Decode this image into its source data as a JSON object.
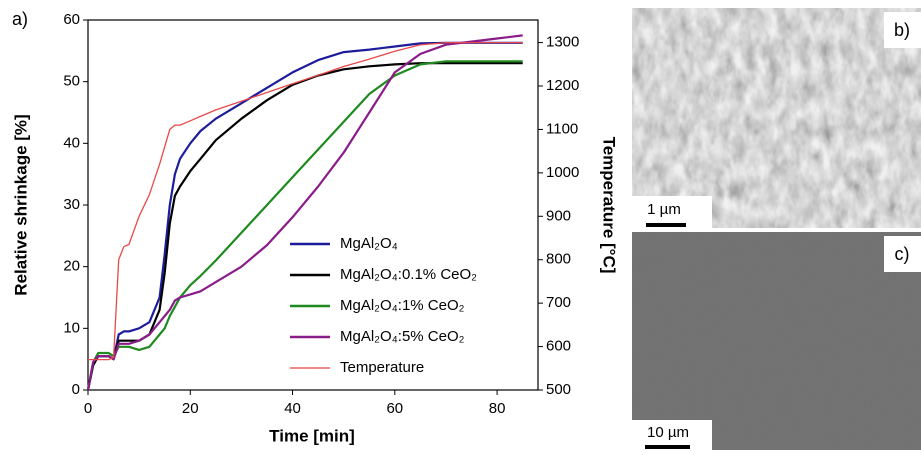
{
  "chart_data": {
    "type": "line",
    "panel_label": "a)",
    "x_label": "Time [min]",
    "y_label": "Relative shrinkage [%]",
    "y2_label": "Temperature [°C]",
    "xlim": [
      0,
      88
    ],
    "ylim": [
      0,
      60
    ],
    "y2lim": [
      500,
      1352
    ],
    "xticks": [
      0,
      20,
      40,
      60,
      80
    ],
    "yticks": [
      0,
      10,
      20,
      30,
      40,
      50,
      60
    ],
    "y2ticks": [
      500,
      600,
      700,
      800,
      900,
      1000,
      1100,
      1200,
      1300
    ],
    "x": [
      0,
      1,
      2,
      3,
      4,
      5,
      6,
      7,
      8,
      10,
      12,
      14,
      15,
      16,
      17,
      18,
      20,
      22,
      25,
      30,
      35,
      40,
      45,
      50,
      55,
      60,
      65,
      70,
      75,
      80,
      85
    ],
    "series": [
      {
        "name": "MgAl₂O₄",
        "color": "#1c1c9c",
        "values": [
          0,
          4,
          5.5,
          5.5,
          5.5,
          5,
          9,
          9.5,
          9.5,
          10,
          11,
          15,
          22,
          30,
          35,
          37.5,
          40,
          42,
          44,
          46.5,
          49,
          51.5,
          53.5,
          54.8,
          55.2,
          55.7,
          56.2,
          56.3,
          56.3,
          56.3,
          56.3
        ]
      },
      {
        "name": "MgAl₂O₄:0.1% CeO₂",
        "color": "#000000",
        "values": [
          0,
          4,
          5.5,
          5.5,
          5.5,
          5,
          8,
          8,
          8,
          8,
          9,
          13,
          19,
          27,
          31.5,
          33,
          35.5,
          37.5,
          40.5,
          44,
          47,
          49.5,
          51,
          52,
          52.5,
          52.8,
          53,
          53,
          53,
          53,
          53
        ]
      },
      {
        "name": "MgAl₂O₄:1% CeO₂",
        "color": "#1f8a1f",
        "values": [
          0,
          4.5,
          6,
          6,
          6,
          5.5,
          7,
          7,
          7,
          6.5,
          7,
          9,
          10,
          12,
          13.5,
          15,
          17,
          18.5,
          21,
          25.5,
          30,
          34.5,
          39,
          43.5,
          48,
          51,
          52.8,
          53.3,
          53.3,
          53.3,
          53.3
        ]
      },
      {
        "name": "MgAl₂O₄:5% CeO₂",
        "color": "#8a1c8a",
        "values": [
          0,
          4.5,
          5.5,
          5.5,
          5.5,
          5,
          7.5,
          7.5,
          7.5,
          8,
          9,
          11,
          12,
          13,
          14.5,
          15,
          15.5,
          16,
          17.5,
          20,
          23.5,
          28,
          33,
          38.5,
          45,
          51.5,
          54.5,
          56,
          56.5,
          57,
          57.5
        ]
      },
      {
        "name": "Temperature",
        "color": "#e84848",
        "axis": "y2",
        "values": [
          570,
          570,
          570,
          570,
          570,
          575,
          800,
          830,
          835,
          900,
          950,
          1020,
          1060,
          1100,
          1110,
          1110,
          1120,
          1130,
          1145,
          1165,
          1185,
          1205,
          1225,
          1245,
          1262,
          1280,
          1295,
          1300,
          1300,
          1300,
          1300
        ]
      }
    ]
  },
  "images": [
    {
      "label": "b)",
      "scale_bar": "1 µm"
    },
    {
      "label": "c)",
      "scale_bar": "10 µm"
    }
  ]
}
